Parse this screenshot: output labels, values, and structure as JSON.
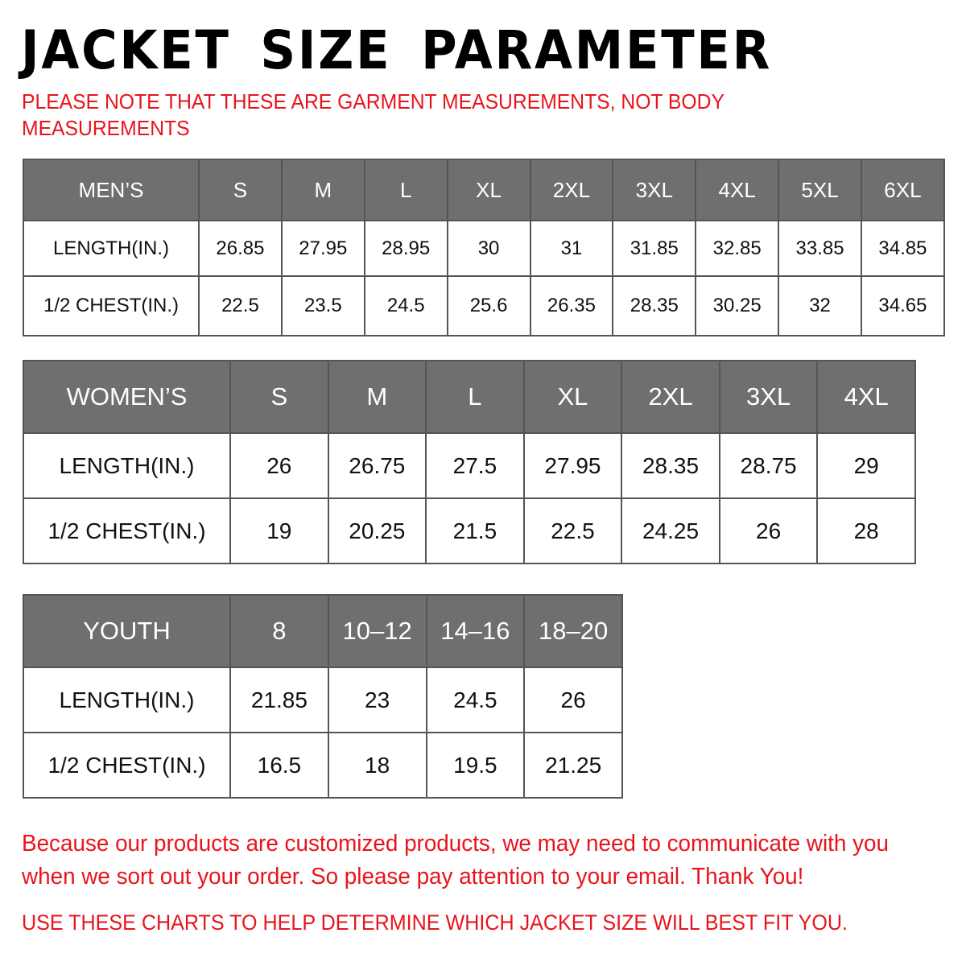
{
  "title": "JACKET SIZE PARAMETER",
  "note": "PLEASE NOTE THAT THESE ARE GARMENT MEASUREMENTS, NOT BODY MEASUREMENTS",
  "colors": {
    "accent_red": "#e8141b",
    "header_gray": "#6f6f6f"
  },
  "tables": [
    {
      "header": [
        "MEN’S",
        "S",
        "M",
        "L",
        "XL",
        "2XL",
        "3XL",
        "4XL",
        "5XL",
        "6XL"
      ],
      "rows": [
        [
          "LENGTH(IN.)",
          "26.85",
          "27.95",
          "28.95",
          "30",
          "31",
          "31.85",
          "32.85",
          "33.85",
          "34.85"
        ],
        [
          "1/2 CHEST(IN.)",
          "22.5",
          "23.5",
          "24.5",
          "25.6",
          "26.35",
          "28.35",
          "30.25",
          "32",
          "34.65"
        ]
      ]
    },
    {
      "header": [
        "WOMEN’S",
        "S",
        "M",
        "L",
        "XL",
        "2XL",
        "3XL",
        "4XL"
      ],
      "rows": [
        [
          "LENGTH(IN.)",
          "26",
          "26.75",
          "27.5",
          "27.95",
          "28.35",
          "28.75",
          "29"
        ],
        [
          "1/2 CHEST(IN.)",
          "19",
          "20.25",
          "21.5",
          "22.5",
          "24.25",
          "26",
          "28"
        ]
      ]
    },
    {
      "header": [
        "YOUTH",
        "8",
        "10–12",
        "14–16",
        "18–20"
      ],
      "rows": [
        [
          "LENGTH(IN.)",
          "21.85",
          "23",
          "24.5",
          "26"
        ],
        [
          "1/2 CHEST(IN.)",
          "16.5",
          "18",
          "19.5",
          "21.25"
        ]
      ]
    }
  ],
  "footer": {
    "message": "Because our products are customized products, we may need to communicate with you when we sort out your order. So please pay attention to your email. Thank You!",
    "advice": "USE THESE CHARTS TO HELP DETERMINE WHICH JACKET SIZE WILL BEST FIT YOU."
  }
}
